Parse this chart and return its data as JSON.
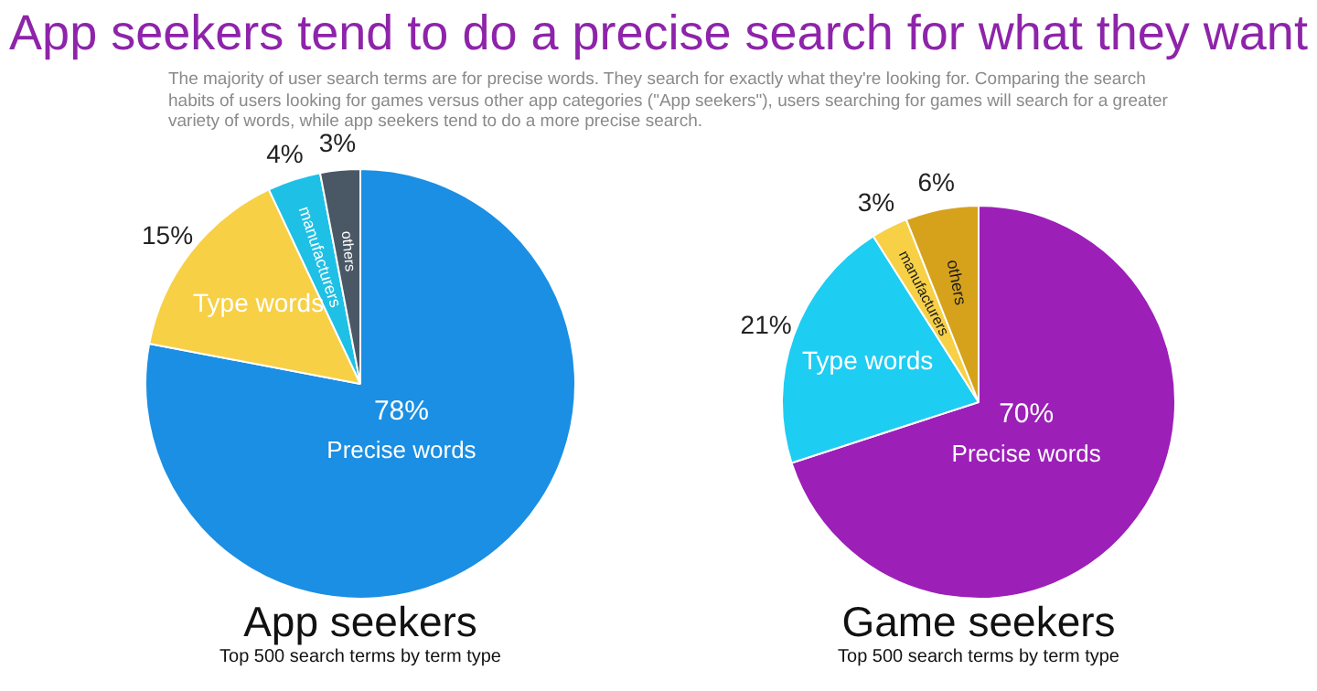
{
  "chart_data": [
    {
      "type": "other",
      "title": "App seekers tend to do a precise search for what they want",
      "subtitle": "The majority of user search terms are for precise words. They search for exactly what they're looking for. Comparing the search habits of users looking for games versus other app categories (\"App seekers\"), users searching for games will search for a greater variety of words, while app seekers tend to do a more precise search."
    },
    {
      "type": "pie",
      "title": "App seekers",
      "subtitle": "Top 500 search terms by term type",
      "categories": [
        "Precise words",
        "Type words",
        "manufacturers",
        "others"
      ],
      "values": [
        78,
        15,
        4,
        3
      ],
      "colors": [
        "#1a8fe3",
        "#f7d046",
        "#1fc0e6",
        "#4a5866"
      ],
      "value_labels": [
        "78%",
        "15%",
        "4%",
        "3%"
      ],
      "legend": false
    },
    {
      "type": "pie",
      "title": "Game seekers",
      "subtitle": "Top 500 search terms by term type",
      "categories": [
        "Precise words",
        "Type words",
        "manufacturers",
        "others"
      ],
      "values": [
        70,
        21,
        3,
        6
      ],
      "colors": [
        "#9c1fb8",
        "#1ecdf2",
        "#f7d046",
        "#d6a21c"
      ],
      "value_labels": [
        "70%",
        "21%",
        "3%",
        "6%"
      ],
      "legend": false
    }
  ]
}
